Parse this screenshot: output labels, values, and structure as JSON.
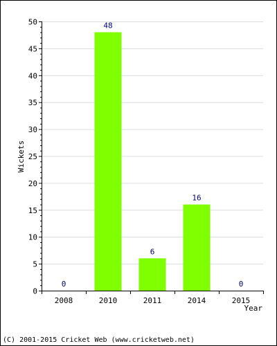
{
  "chart_data": {
    "type": "bar",
    "categories": [
      "2008",
      "2010",
      "2011",
      "2014",
      "2015"
    ],
    "values": [
      0,
      48,
      6,
      16,
      0
    ],
    "xlabel": "Year",
    "ylabel": "Wickets",
    "ylim": [
      0,
      50
    ],
    "yticks": [
      0,
      5,
      10,
      15,
      20,
      25,
      30,
      35,
      40,
      45,
      50
    ],
    "grid": true,
    "legend": "none",
    "colors": {
      "bar": "#80ff00",
      "data_label": "#000080",
      "grid": "#dcdcdc",
      "axis": "#000000"
    }
  },
  "footer": {
    "copyright": "(C) 2001-2015 Cricket Web (www.cricketweb.net)"
  }
}
